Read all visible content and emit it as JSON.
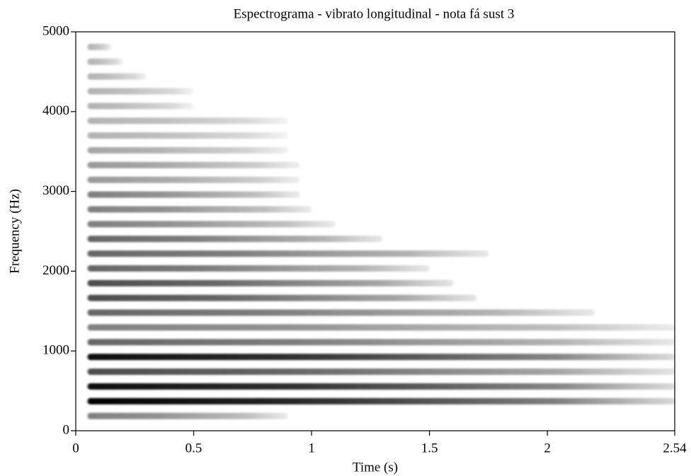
{
  "chart_data": {
    "type": "spectrogram",
    "title": "Espectrograma - vibrato longitudinal - nota fá sust 3",
    "xlabel": "Time (s)",
    "ylabel": "Frequency (Hz)",
    "xlim": [
      0,
      2.54
    ],
    "xticks": [
      0,
      0.5,
      1,
      1.5,
      2,
      2.54
    ],
    "ylim": [
      0,
      5000
    ],
    "yticks": [
      0,
      1000,
      2000,
      3000,
      4000,
      5000
    ],
    "color": "#000000",
    "bands": [
      {
        "frequency": 185,
        "start": 0.05,
        "end": 0.9,
        "intensity": 0.5
      },
      {
        "frequency": 370,
        "start": 0.05,
        "end": 2.54,
        "intensity": 1.0
      },
      {
        "frequency": 555,
        "start": 0.05,
        "end": 2.54,
        "intensity": 0.95
      },
      {
        "frequency": 740,
        "start": 0.05,
        "end": 2.54,
        "intensity": 0.7
      },
      {
        "frequency": 925,
        "start": 0.05,
        "end": 2.54,
        "intensity": 0.95
      },
      {
        "frequency": 1110,
        "start": 0.05,
        "end": 2.54,
        "intensity": 0.6
      },
      {
        "frequency": 1295,
        "start": 0.05,
        "end": 2.54,
        "intensity": 0.5
      },
      {
        "frequency": 1480,
        "start": 0.05,
        "end": 2.2,
        "intensity": 0.6
      },
      {
        "frequency": 1665,
        "start": 0.05,
        "end": 1.7,
        "intensity": 0.7
      },
      {
        "frequency": 1850,
        "start": 0.05,
        "end": 1.6,
        "intensity": 0.7
      },
      {
        "frequency": 2035,
        "start": 0.05,
        "end": 1.5,
        "intensity": 0.6
      },
      {
        "frequency": 2220,
        "start": 0.05,
        "end": 1.75,
        "intensity": 0.6
      },
      {
        "frequency": 2405,
        "start": 0.05,
        "end": 1.3,
        "intensity": 0.6
      },
      {
        "frequency": 2590,
        "start": 0.05,
        "end": 1.1,
        "intensity": 0.5
      },
      {
        "frequency": 2775,
        "start": 0.05,
        "end": 1.0,
        "intensity": 0.5
      },
      {
        "frequency": 2960,
        "start": 0.05,
        "end": 0.95,
        "intensity": 0.5
      },
      {
        "frequency": 3145,
        "start": 0.05,
        "end": 0.95,
        "intensity": 0.4
      },
      {
        "frequency": 3330,
        "start": 0.05,
        "end": 0.95,
        "intensity": 0.4
      },
      {
        "frequency": 3515,
        "start": 0.05,
        "end": 0.9,
        "intensity": 0.35
      },
      {
        "frequency": 3700,
        "start": 0.05,
        "end": 0.9,
        "intensity": 0.3
      },
      {
        "frequency": 3885,
        "start": 0.05,
        "end": 0.9,
        "intensity": 0.3
      },
      {
        "frequency": 4070,
        "start": 0.05,
        "end": 0.5,
        "intensity": 0.3
      },
      {
        "frequency": 4255,
        "start": 0.05,
        "end": 0.5,
        "intensity": 0.3
      },
      {
        "frequency": 4440,
        "start": 0.05,
        "end": 0.3,
        "intensity": 0.3
      },
      {
        "frequency": 4625,
        "start": 0.05,
        "end": 0.2,
        "intensity": 0.3
      },
      {
        "frequency": 4810,
        "start": 0.05,
        "end": 0.15,
        "intensity": 0.3
      }
    ]
  }
}
